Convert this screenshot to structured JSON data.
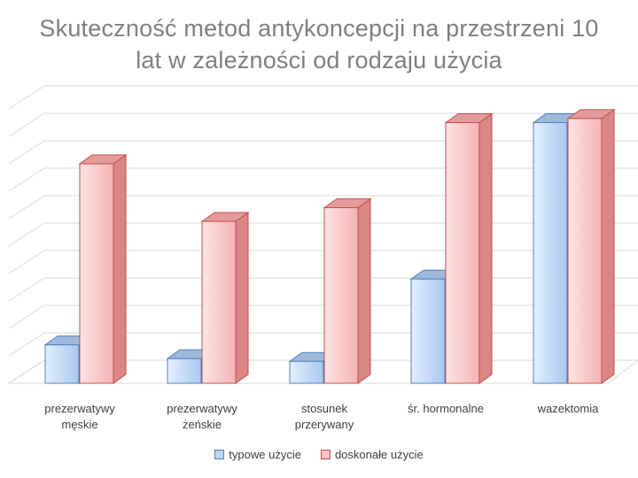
{
  "chart_data": {
    "type": "bar",
    "title_lines": [
      "Skuteczność metod antykoncepcji na przestrzeni 10",
      "lat  w zależności od rodzaju użycia"
    ],
    "categories": [
      [
        "prezerwatywy",
        "męskie"
      ],
      [
        "prezerwatywy",
        "żeńskie"
      ],
      [
        "stosunek",
        "przerywany"
      ],
      [
        "śr. hormonalne"
      ],
      [
        "wazektomia"
      ]
    ],
    "series": [
      {
        "name": "typowe użycie",
        "values": [
          14,
          9,
          8,
          38,
          95
        ],
        "color": "#bdd7f5",
        "stroke": "#4f81bd"
      },
      {
        "name": "doskonałe użycie",
        "values": [
          80,
          59,
          64,
          95,
          96.5
        ],
        "color": "#f7c4c4",
        "stroke": "#c0504d"
      }
    ],
    "ylim": [
      0,
      100
    ],
    "gridlines": 10,
    "legend_position": "bottom"
  }
}
